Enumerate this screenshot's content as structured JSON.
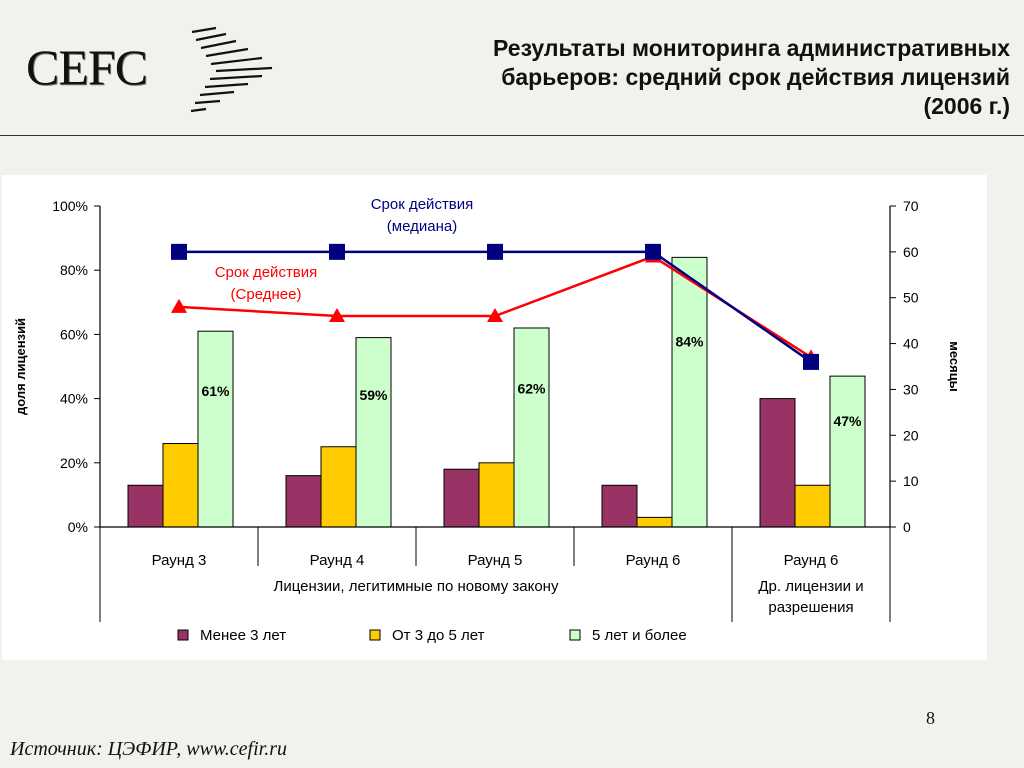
{
  "header": {
    "logo_text": "CEFC",
    "title_lines": [
      "Результаты мониторинга административных",
      "барьеров: средний срок действия лицензий",
      "(2006 г.)"
    ]
  },
  "footer": {
    "page_number": "8",
    "source": "Источник: ЦЭФИР, www.cefir.ru"
  },
  "chart_data": {
    "type": "bar",
    "categories": [
      "Раунд 3",
      "Раунд 4",
      "Раунд 5",
      "Раунд 6",
      "Раунд 6"
    ],
    "groups": [
      {
        "label": "Лицензии, легитимные по новому закону",
        "categories": [
          0,
          1,
          2,
          3
        ]
      },
      {
        "label": "Др. лицензии и разрешения",
        "label_lines": [
          "Др. лицензии и",
          "разрешения"
        ],
        "categories": [
          4
        ]
      }
    ],
    "y_left": {
      "label": "доля лицензий",
      "ylim": [
        0,
        100
      ],
      "ticks": [
        "0%",
        "20%",
        "40%",
        "60%",
        "80%",
        "100%"
      ],
      "tick_values": [
        0,
        20,
        40,
        60,
        80,
        100
      ]
    },
    "y_right": {
      "label": "месяцы",
      "ylim": [
        0,
        70
      ],
      "ticks": [
        "0",
        "10",
        "20",
        "30",
        "40",
        "50",
        "60",
        "70"
      ],
      "tick_values": [
        0,
        10,
        20,
        30,
        40,
        50,
        60,
        70
      ]
    },
    "series": [
      {
        "name": "Менее 3 лет",
        "color": "#993366",
        "values": [
          13,
          16,
          18,
          13,
          40
        ]
      },
      {
        "name": "От 3 до 5 лет",
        "color": "#ffcc00",
        "values": [
          26,
          25,
          20,
          3,
          13
        ]
      },
      {
        "name": "5 лет и более",
        "color": "#ccffcc",
        "values": [
          61,
          59,
          62,
          84,
          47
        ],
        "data_labels": [
          "61%",
          "59%",
          "62%",
          "84%",
          "47%"
        ]
      }
    ],
    "lines": [
      {
        "name": "Срок действия (медиана)",
        "label_lines": [
          "Срок действия",
          "(медиана)"
        ],
        "color": "#000080",
        "marker": "square",
        "axis": "right",
        "values": [
          60,
          60,
          60,
          60,
          36
        ]
      },
      {
        "name": "Срок действия (Среднее)",
        "label_lines": [
          "Срок действия",
          "(Среднее)"
        ],
        "color": "#ff0000",
        "marker": "triangle",
        "axis": "right",
        "values": [
          48,
          46,
          46,
          59,
          37
        ]
      }
    ],
    "legend_position": "bottom",
    "grid": false
  }
}
